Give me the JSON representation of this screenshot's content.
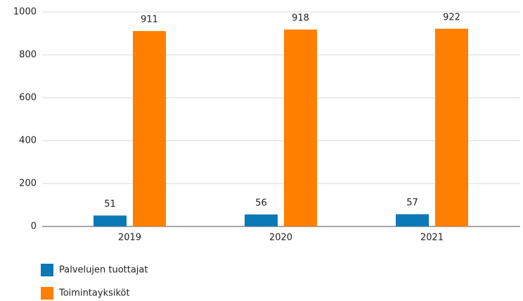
{
  "chart_data": {
    "type": "bar",
    "categories": [
      "2019",
      "2020",
      "2021"
    ],
    "series": [
      {
        "name": "Palvelujen tuottajat",
        "color": "#0b79b8",
        "values": [
          51,
          56,
          57
        ]
      },
      {
        "name": "Toimintayksiköt",
        "color": "#ff7f00",
        "values": [
          911,
          918,
          922
        ]
      }
    ],
    "ylim": [
      0,
      1000
    ],
    "yticks": [
      0,
      200,
      400,
      600,
      800,
      1000
    ],
    "grid": true
  }
}
